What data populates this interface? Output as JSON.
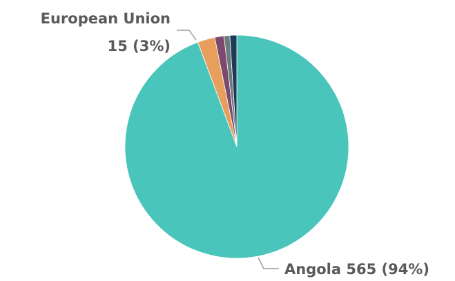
{
  "chart_data": {
    "type": "pie",
    "categories": [
      "Angola",
      "European Union",
      null,
      null,
      null
    ],
    "values": [
      565,
      15,
      8,
      5,
      6
    ],
    "value_labels": [
      "565 (94%)",
      "15 (3%)",
      null,
      null,
      null
    ],
    "colors": [
      "#4ac5bb",
      "#e89f5e",
      "#7b4a6e",
      "#6b7b7e",
      "#1d3b56"
    ]
  }
}
